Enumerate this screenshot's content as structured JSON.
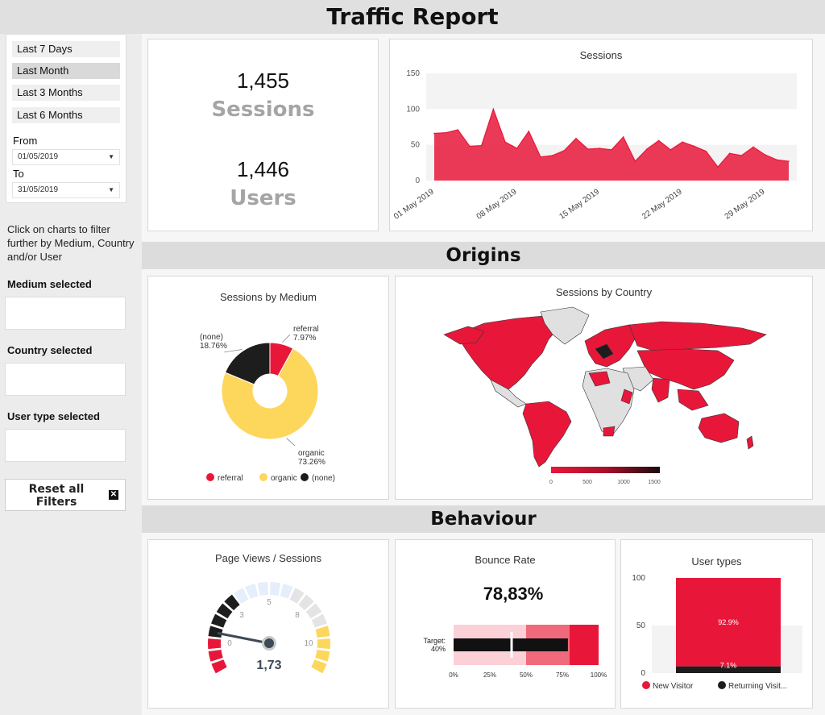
{
  "header": {
    "title": "Traffic Report"
  },
  "sidebar": {
    "ranges": [
      "Last 7 Days",
      "Last Month",
      "Last 3 Months",
      "Last 6 Months"
    ],
    "active_range": "Last Month",
    "from_label": "From",
    "from_value": "01/05/2019",
    "to_label": "To",
    "to_value": "31/05/2019",
    "hint": "Click on charts to filter further by Medium, Country and/or User",
    "medium_label": "Medium selected",
    "country_label": "Country selected",
    "usertype_label": "User type selected",
    "reset_label": "Reset all Filters"
  },
  "kpis": {
    "sessions_value": "1,455",
    "sessions_label": "Sessions",
    "users_value": "1,446",
    "users_label": "Users"
  },
  "sections": {
    "origins": "Origins",
    "behaviour": "Behaviour"
  },
  "colors": {
    "accent": "#e8173a",
    "organic": "#fdd65c",
    "none": "#1d1d1d",
    "gauge_track": "#e5e5e5"
  },
  "chart_data": [
    {
      "type": "area",
      "title": "Sessions",
      "x": [
        "01 May 2019",
        "02 May 2019",
        "03 May 2019",
        "04 May 2019",
        "05 May 2019",
        "06 May 2019",
        "07 May 2019",
        "08 May 2019",
        "09 May 2019",
        "10 May 2019",
        "11 May 2019",
        "12 May 2019",
        "13 May 2019",
        "14 May 2019",
        "15 May 2019",
        "16 May 2019",
        "17 May 2019",
        "18 May 2019",
        "19 May 2019",
        "20 May 2019",
        "21 May 2019",
        "22 May 2019",
        "23 May 2019",
        "24 May 2019",
        "25 May 2019",
        "26 May 2019",
        "27 May 2019",
        "28 May 2019",
        "29 May 2019",
        "30 May 2019",
        "31 May 2019"
      ],
      "values": [
        66,
        67,
        71,
        48,
        49,
        100,
        54,
        45,
        69,
        33,
        35,
        42,
        59,
        44,
        45,
        43,
        61,
        27,
        44,
        56,
        43,
        54,
        48,
        41,
        19,
        38,
        35,
        47,
        36,
        29,
        27
      ],
      "xticks": [
        "01 May 2019",
        "08 May 2019",
        "15 May 2019",
        "22 May 2019",
        "29 May 2019"
      ],
      "yticks": [
        0,
        50,
        100,
        150
      ],
      "ylim": [
        0,
        150
      ]
    },
    {
      "type": "pie",
      "title": "Sessions by Medium",
      "categories": [
        "referral",
        "organic",
        "(none)"
      ],
      "values": [
        7.97,
        73.26,
        18.76
      ],
      "labels": [
        "7.97%",
        "73.26%",
        "18.76%"
      ],
      "colors": [
        "#e8173a",
        "#fdd65c",
        "#1d1d1d"
      ],
      "legend": "bottom"
    },
    {
      "type": "heatmap",
      "title": "Sessions by Country",
      "colorbar_ticks": [
        0,
        500,
        1000,
        1500
      ]
    },
    {
      "type": "gauge",
      "title": "Page Views / Sessions",
      "value": 1.73,
      "display": "1,73",
      "range": [
        0,
        10
      ],
      "ticks": [
        "0",
        "3",
        "5",
        "8",
        "10"
      ]
    },
    {
      "type": "bar",
      "title": "Bounce Rate",
      "value": 78.83,
      "display": "78,83%",
      "target": 40,
      "target_label": "Target:",
      "target_value": "40%",
      "xticks": [
        "0%",
        "25%",
        "50%",
        "75%",
        "100%"
      ]
    },
    {
      "type": "bar",
      "title": "User types",
      "categories": [
        "New Visitor",
        "Returning Visitor"
      ],
      "legend_labels": [
        "New Visitor",
        "Returning Visit..."
      ],
      "values": [
        92.9,
        7.1
      ],
      "labels": [
        "92.9%",
        "7.1%"
      ],
      "yticks": [
        0,
        50,
        100
      ],
      "ylim": [
        0,
        100
      ],
      "stacked": true
    }
  ]
}
